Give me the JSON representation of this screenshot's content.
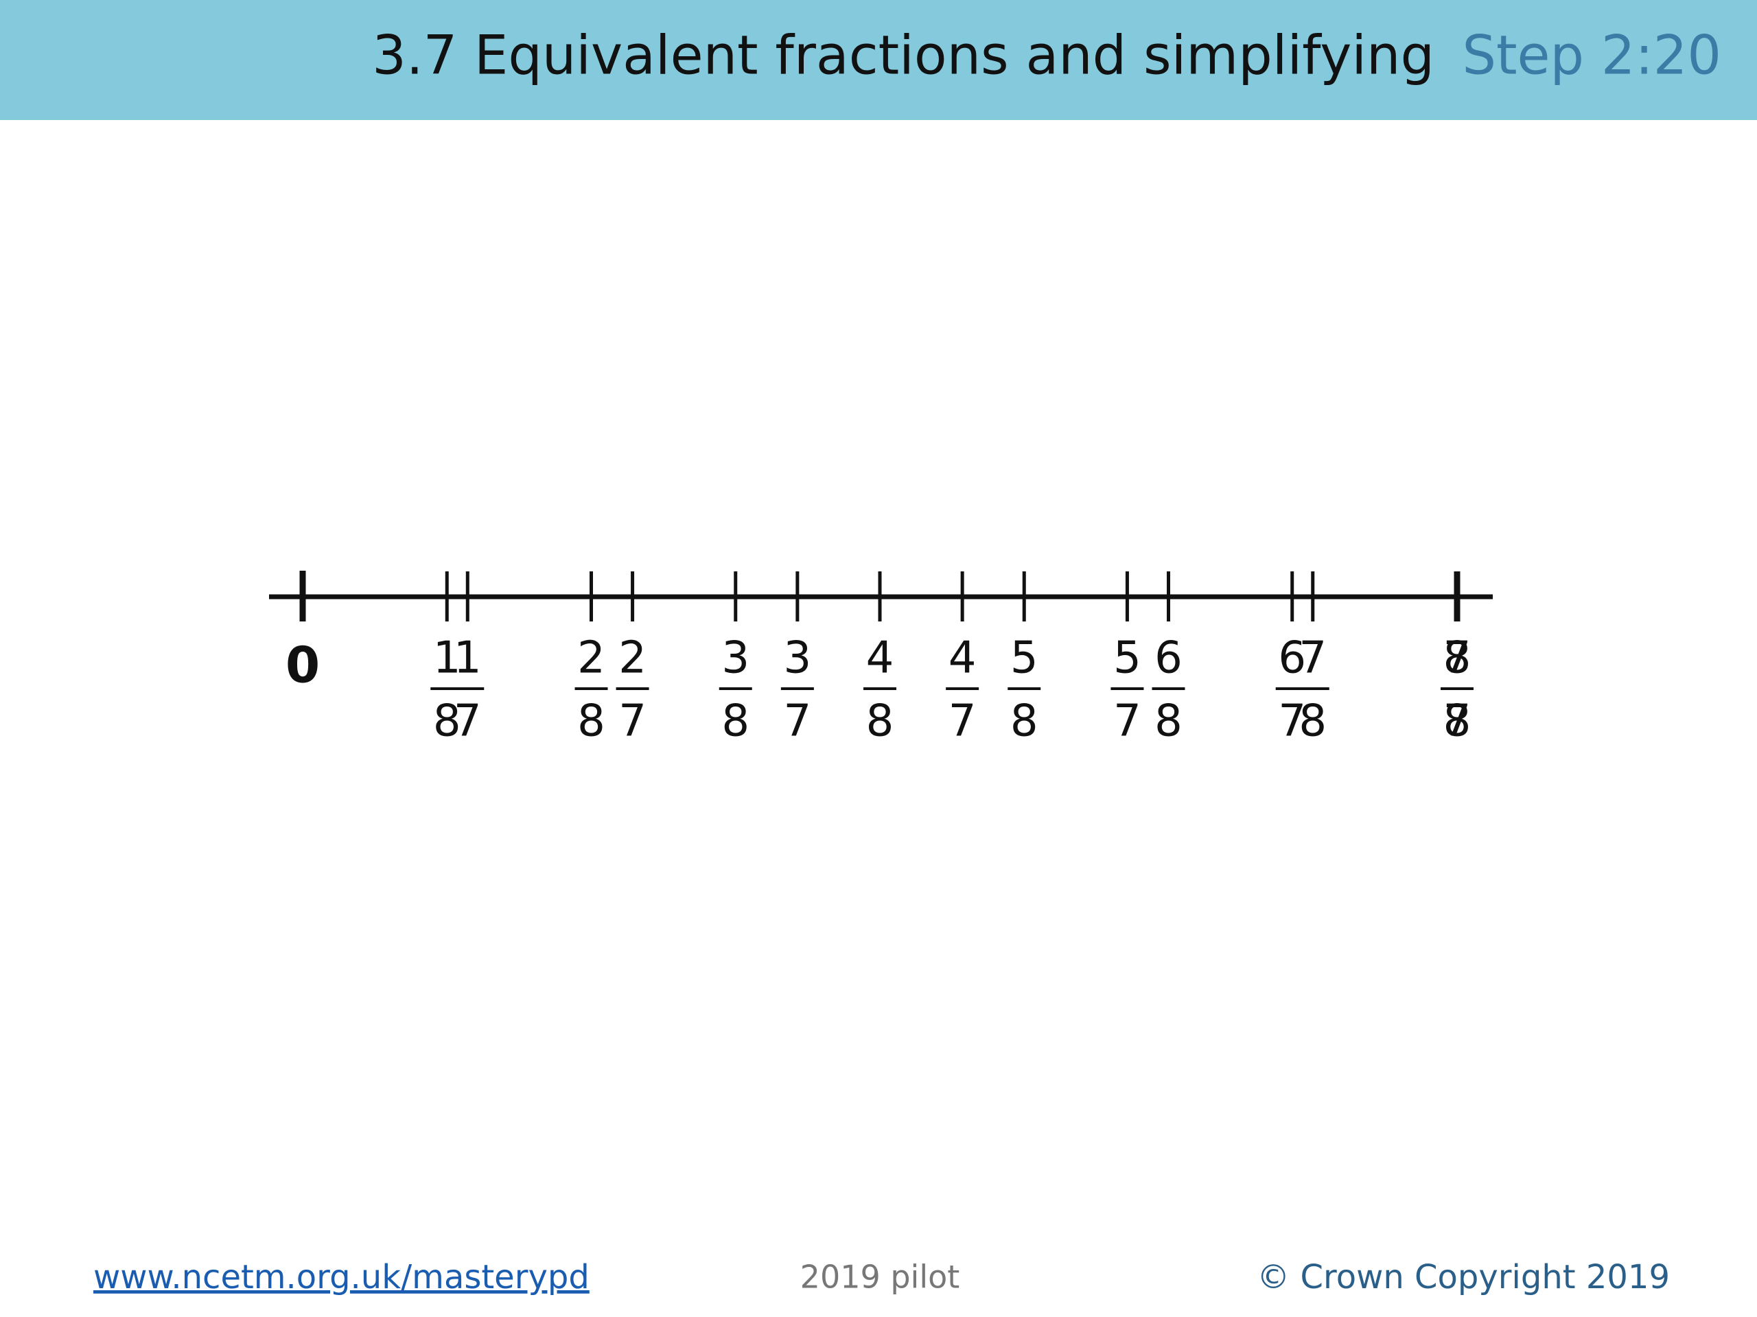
{
  "header": {
    "title": "3.7 Equivalent fractions and simplifying",
    "step": "Step 2:20"
  },
  "number_line": {
    "start_label": "0",
    "fraction_sets": [
      [
        {
          "numerator": 1,
          "denominator": 8
        },
        {
          "numerator": 2,
          "denominator": 8
        },
        {
          "numerator": 3,
          "denominator": 8
        },
        {
          "numerator": 4,
          "denominator": 8
        },
        {
          "numerator": 5,
          "denominator": 8
        },
        {
          "numerator": 6,
          "denominator": 8
        },
        {
          "numerator": 7,
          "denominator": 8
        },
        {
          "numerator": 8,
          "denominator": 8
        }
      ],
      [
        {
          "numerator": 1,
          "denominator": 7
        },
        {
          "numerator": 2,
          "denominator": 7
        },
        {
          "numerator": 3,
          "denominator": 7
        },
        {
          "numerator": 4,
          "denominator": 7
        },
        {
          "numerator": 5,
          "denominator": 7
        },
        {
          "numerator": 6,
          "denominator": 7
        },
        {
          "numerator": 7,
          "denominator": 7
        }
      ]
    ]
  },
  "footer": {
    "link": "www.ncetm.org.uk/masterypd",
    "center": "2019 pilot",
    "copyright": "© Crown Copyright 2019"
  }
}
